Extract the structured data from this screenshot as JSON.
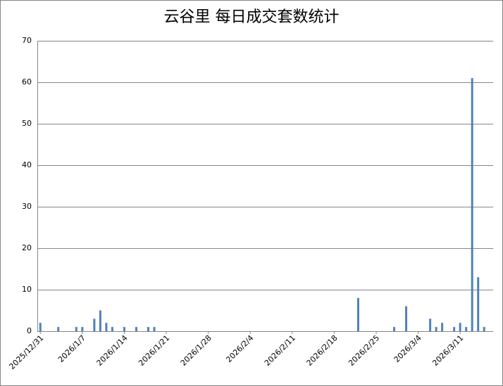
{
  "chart_data": {
    "type": "bar",
    "title": "云谷里 每日成交套数统计",
    "categories": [
      "2025/12/31",
      null,
      null,
      null,
      null,
      null,
      null,
      "2026/1/7",
      null,
      null,
      null,
      null,
      null,
      null,
      "2026/1/14",
      null,
      null,
      null,
      null,
      null,
      null,
      "2026/1/21",
      null,
      null,
      null,
      null,
      null,
      null,
      "2026/1/28",
      null,
      null,
      null,
      null,
      null,
      null,
      "2026/2/4",
      null,
      null,
      null,
      null,
      null,
      null,
      "2026/2/11",
      null,
      null,
      null,
      null,
      null,
      null,
      "2026/2/18",
      null,
      null,
      null,
      null,
      null,
      null,
      "2026/2/25",
      null,
      null,
      null,
      null,
      null,
      null,
      "2026/3/4",
      null,
      null,
      null,
      null,
      null,
      null,
      "2026/3/11",
      null,
      null,
      null,
      null,
      null
    ],
    "values": [
      2,
      0,
      0,
      1,
      0,
      0,
      1,
      1,
      0,
      3,
      5,
      2,
      1,
      0,
      1,
      0,
      1,
      0,
      1,
      1,
      0,
      0,
      0,
      0,
      0,
      0,
      0,
      0,
      0,
      0,
      0,
      0,
      0,
      0,
      0,
      0,
      0,
      0,
      0,
      0,
      0,
      0,
      0,
      0,
      0,
      0,
      0,
      0,
      0,
      0,
      0,
      0,
      0,
      8,
      0,
      0,
      0,
      0,
      0,
      1,
      0,
      6,
      0,
      0,
      0,
      3,
      1,
      2,
      0,
      1,
      2,
      1,
      61,
      13,
      1,
      0
    ],
    "color": "#4f81bd",
    "ylim": [
      0,
      70
    ],
    "yticks": [
      0,
      10,
      20,
      30,
      40,
      50,
      60,
      70
    ],
    "grid": true
  }
}
